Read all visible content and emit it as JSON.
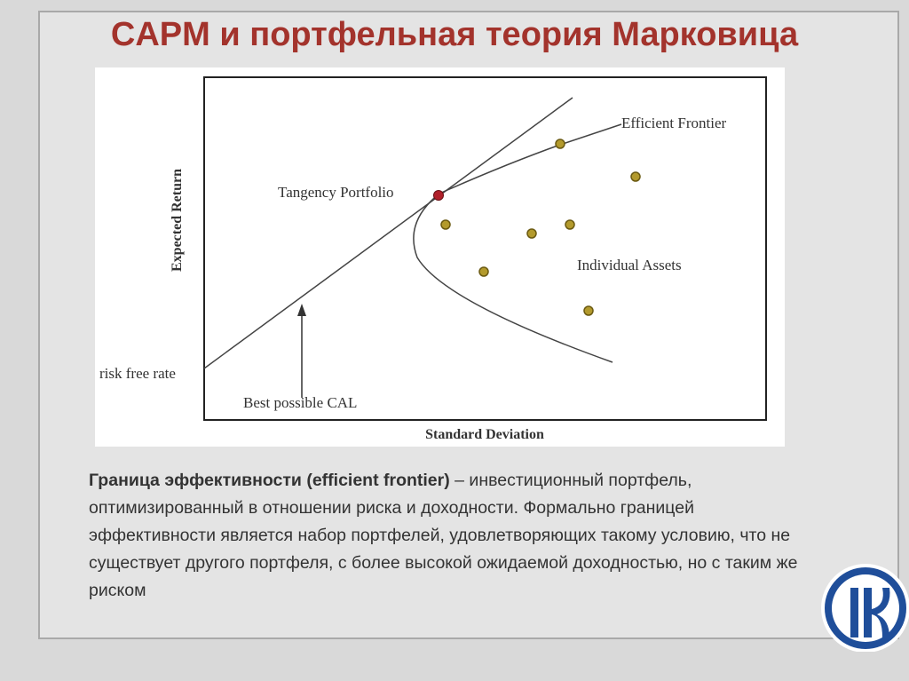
{
  "title": "CAPM и портфельная теория Марковица",
  "diagram": {
    "y_axis_label": "Expected Return",
    "x_axis_label": "Standard Deviation",
    "efficient_frontier": "Efficient Frontier",
    "tangency_portfolio": "Tangency Portfolio",
    "individual_assets": "Individual Assets",
    "risk_free_rate": "risk free rate",
    "best_cal": "Best possible CAL"
  },
  "body": {
    "term": "Граница эффективности (efficient frontier)",
    "text": "– инвестиционный портфель, оптимизированный в отношении риска и доходности. Формально границей эффективности является набор портфелей, удовлетворяющих такому условию, что не существует другого портфеля, с более высокой ожидаемой доходностью, но с таким же риском"
  }
}
